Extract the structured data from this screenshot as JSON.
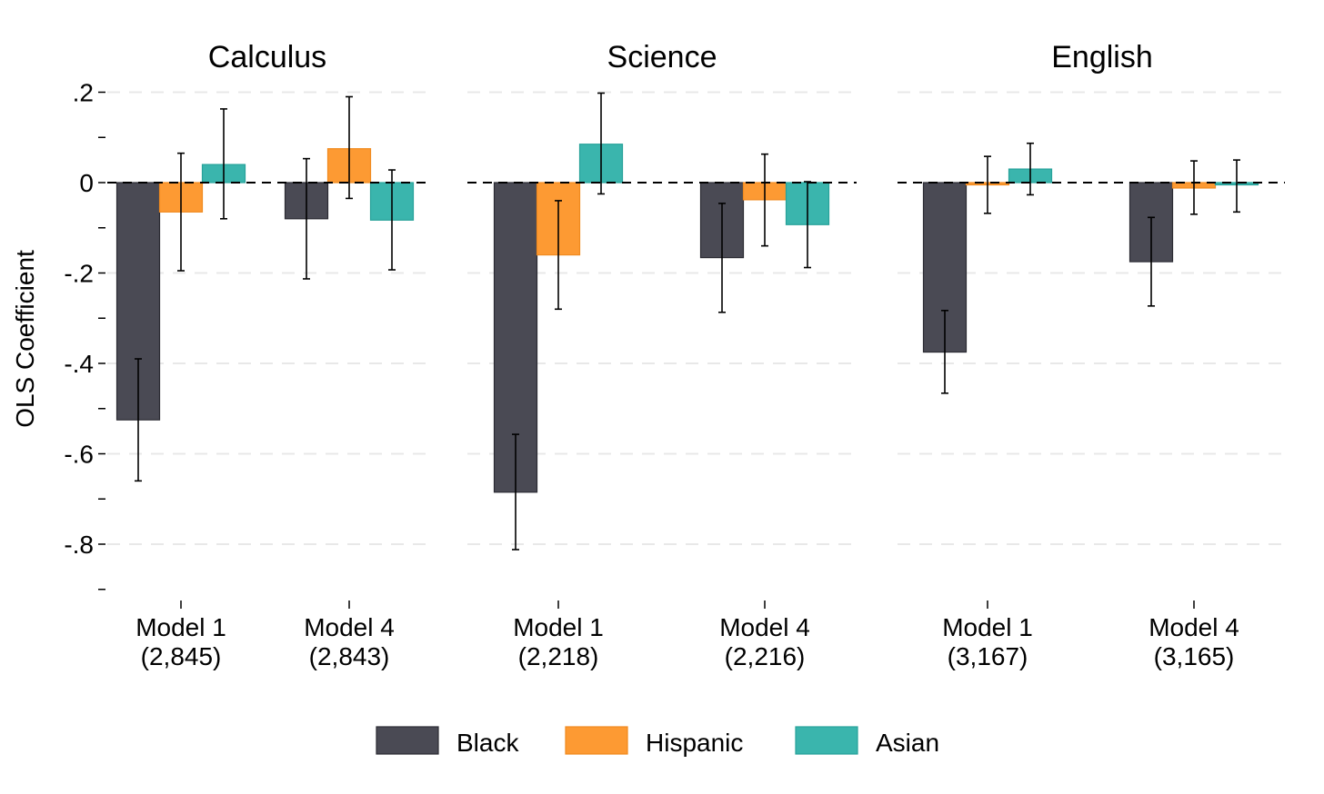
{
  "chart_data": {
    "type": "bar",
    "ylabel": "OLS Coefficient",
    "ylim": [
      -0.9,
      0.2
    ],
    "yticks": [
      {
        "value": 0.2,
        "label": ".2"
      },
      {
        "value": 0.1,
        "label": ""
      },
      {
        "value": 0,
        "label": "0"
      },
      {
        "value": -0.1,
        "label": ""
      },
      {
        "value": -0.2,
        "label": "-.2"
      },
      {
        "value": -0.3,
        "label": ""
      },
      {
        "value": -0.4,
        "label": "-.4"
      },
      {
        "value": -0.5,
        "label": ""
      },
      {
        "value": -0.6,
        "label": "-.6"
      },
      {
        "value": -0.7,
        "label": ""
      },
      {
        "value": -0.8,
        "label": "-.8"
      },
      {
        "value": -0.9,
        "label": ""
      }
    ],
    "legend": {
      "placement": "bottom",
      "entries": [
        {
          "name": "Black",
          "color": "#4a4a54"
        },
        {
          "name": "Hispanic",
          "color": "#fd9a33"
        },
        {
          "name": "Asian",
          "color": "#3ab5ad"
        }
      ]
    },
    "panels": [
      {
        "title": "Calculus",
        "groups": [
          {
            "label": "Model 1",
            "sublabel": "(2,845)",
            "bars": [
              {
                "series": "Black",
                "value": -0.525,
                "ci": [
                  -0.66,
                  -0.39
                ]
              },
              {
                "series": "Hispanic",
                "value": -0.065,
                "ci": [
                  -0.195,
                  0.065
                ]
              },
              {
                "series": "Asian",
                "value": 0.04,
                "ci": [
                  -0.08,
                  0.163
                ]
              }
            ]
          },
          {
            "label": "Model 4",
            "sublabel": "(2,843)",
            "bars": [
              {
                "series": "Black",
                "value": -0.08,
                "ci": [
                  -0.213,
                  0.053
                ]
              },
              {
                "series": "Hispanic",
                "value": 0.075,
                "ci": [
                  -0.035,
                  0.19
                ]
              },
              {
                "series": "Asian",
                "value": -0.083,
                "ci": [
                  -0.193,
                  0.028
                ]
              }
            ]
          }
        ]
      },
      {
        "title": "Science",
        "groups": [
          {
            "label": "Model 1",
            "sublabel": "(2,218)",
            "bars": [
              {
                "series": "Black",
                "value": -0.685,
                "ci": [
                  -0.812,
                  -0.557
                ]
              },
              {
                "series": "Hispanic",
                "value": -0.16,
                "ci": [
                  -0.28,
                  -0.04
                ]
              },
              {
                "series": "Asian",
                "value": 0.085,
                "ci": [
                  -0.025,
                  0.198
                ]
              }
            ]
          },
          {
            "label": "Model 4",
            "sublabel": "(2,216)",
            "bars": [
              {
                "series": "Black",
                "value": -0.166,
                "ci": [
                  -0.287,
                  -0.046
                ]
              },
              {
                "series": "Hispanic",
                "value": -0.038,
                "ci": [
                  -0.14,
                  0.063
                ]
              },
              {
                "series": "Asian",
                "value": -0.093,
                "ci": [
                  -0.188,
                  0.002
                ]
              }
            ]
          }
        ]
      },
      {
        "title": "English",
        "groups": [
          {
            "label": "Model 1",
            "sublabel": "(3,167)",
            "bars": [
              {
                "series": "Black",
                "value": -0.375,
                "ci": [
                  -0.466,
                  -0.283
                ]
              },
              {
                "series": "Hispanic",
                "value": -0.005,
                "ci": [
                  -0.068,
                  0.058
                ]
              },
              {
                "series": "Asian",
                "value": 0.03,
                "ci": [
                  -0.027,
                  0.087
                ]
              }
            ]
          },
          {
            "label": "Model 4",
            "sublabel": "(3,165)",
            "bars": [
              {
                "series": "Black",
                "value": -0.175,
                "ci": [
                  -0.273,
                  -0.077
                ]
              },
              {
                "series": "Hispanic",
                "value": -0.012,
                "ci": [
                  -0.07,
                  0.048
                ]
              },
              {
                "series": "Asian",
                "value": -0.005,
                "ci": [
                  -0.065,
                  0.05
                ]
              }
            ]
          }
        ]
      }
    ]
  }
}
